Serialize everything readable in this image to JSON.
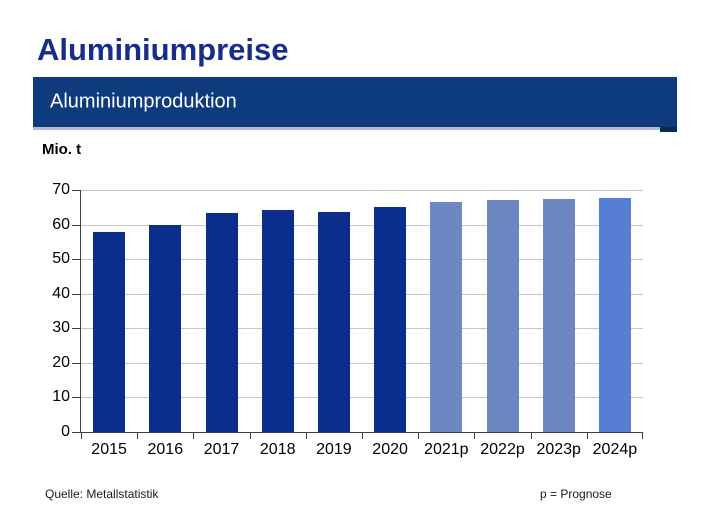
{
  "page": {
    "title": "Aluminiumpreise"
  },
  "banner": {
    "label": "Aluminiumproduktion"
  },
  "chart_data": {
    "type": "bar",
    "title": "Aluminiumproduktion",
    "ylabel": "Mio. t",
    "xlabel": "",
    "categories": [
      "2015",
      "2016",
      "2017",
      "2018",
      "2019",
      "2020",
      "2021p",
      "2022p",
      "2023p",
      "2024p"
    ],
    "values": [
      57.9,
      60.0,
      63.3,
      64.2,
      63.7,
      65.1,
      66.5,
      67.0,
      67.3,
      67.6
    ],
    "bar_colors": [
      "#0B2D8C",
      "#0B2D8C",
      "#0B2D8C",
      "#0B2D8C",
      "#0B2D8C",
      "#0B2D8C",
      "#6D87C1",
      "#6D87C1",
      "#6D87C1",
      "#567FD3"
    ],
    "ylim": [
      0,
      70
    ],
    "yticks": [
      0,
      10,
      20,
      30,
      40,
      50,
      60,
      70
    ],
    "grid": true,
    "legend_position": "none",
    "forecast_note": "p = Prognose"
  },
  "footer": {
    "source": "Quelle: Metallstatistik",
    "note": "p = Prognose"
  },
  "colors": {
    "title_text": "#182C89",
    "banner_bg": "#0E3B7D",
    "banner_text": "#FFFFFF",
    "banner_underline": "#AFBCD2",
    "banner_accent": "#0A2A56",
    "bar_actual": "#0B2D8C",
    "bar_forecast": "#6D87C1",
    "bar_forecast_latest": "#567FD3",
    "gridline": "#C6C6C6",
    "axis": "#404040",
    "tick_label": "#000000"
  }
}
